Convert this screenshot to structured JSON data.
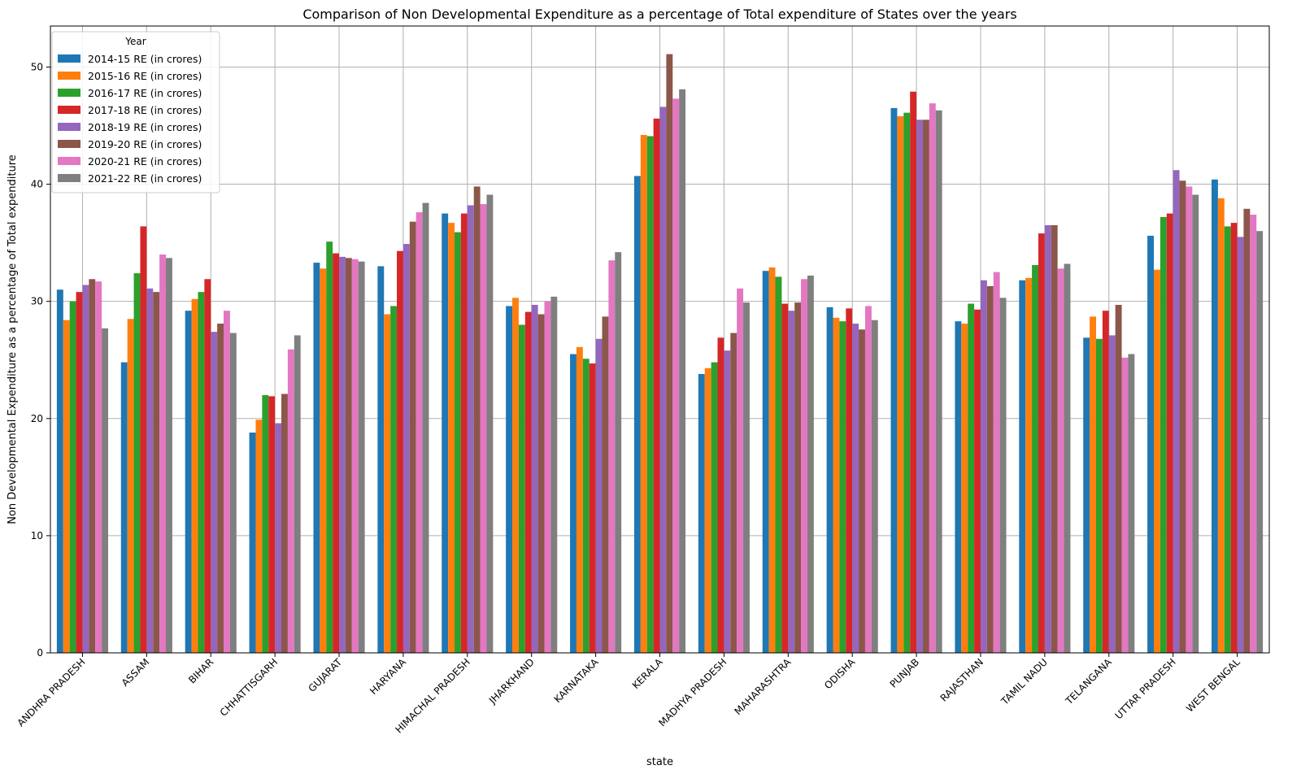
{
  "chart_data": {
    "type": "bar",
    "title": "Comparison of Non Developmental Expenditure as a percentage of Total expenditure of States over the years",
    "xlabel": "state",
    "ylabel": "Non Developmental Expenditure as a percentage of Total expenditure",
    "ylim": [
      0,
      53.5
    ],
    "yticks": [
      0,
      10,
      20,
      30,
      40,
      50
    ],
    "grid": true,
    "legend": {
      "title": "Year",
      "placement": "top-left"
    },
    "categories": [
      "ANDHRA PRADESH",
      "ASSAM",
      "BIHAR",
      "CHHATTISGARH",
      "GUJARAT",
      "HARYANA",
      "HIMACHAL PRADESH",
      "JHARKHAND",
      "KARNATAKA",
      "KERALA",
      "MADHYA PRADESH",
      "MAHARASHTRA",
      "ODISHA",
      "PUNJAB",
      "RAJASTHAN",
      "TAMIL NADU",
      "TELANGANA",
      "UTTAR PRADESH",
      "WEST BENGAL"
    ],
    "series": [
      {
        "name": "2014-15 RE (in crores)",
        "color": "#1f77b4",
        "values": [
          31.0,
          24.8,
          29.2,
          18.8,
          33.3,
          33.0,
          37.5,
          29.6,
          25.5,
          40.7,
          23.8,
          32.6,
          29.5,
          46.5,
          28.3,
          31.8,
          26.9,
          35.6,
          40.4
        ]
      },
      {
        "name": "2015-16 RE (in crores)",
        "color": "#ff7f0e",
        "values": [
          28.4,
          28.5,
          30.2,
          19.9,
          32.8,
          28.9,
          36.7,
          30.3,
          26.1,
          44.2,
          24.3,
          32.9,
          28.6,
          45.8,
          28.1,
          32.0,
          28.7,
          32.7,
          38.8
        ]
      },
      {
        "name": "2016-17 RE (in crores)",
        "color": "#2ca02c",
        "values": [
          30.0,
          32.4,
          30.8,
          22.0,
          35.1,
          29.6,
          35.9,
          28.0,
          25.1,
          44.1,
          24.8,
          32.1,
          28.3,
          46.1,
          29.8,
          33.1,
          26.8,
          37.2,
          36.4
        ]
      },
      {
        "name": "2017-18 RE (in crores)",
        "color": "#d62728",
        "values": [
          30.8,
          36.4,
          31.9,
          21.9,
          34.1,
          34.3,
          37.5,
          29.1,
          24.7,
          45.6,
          26.9,
          29.8,
          29.4,
          47.9,
          29.3,
          35.8,
          29.2,
          37.5,
          36.7
        ]
      },
      {
        "name": "2018-19 RE (in crores)",
        "color": "#9467bd",
        "values": [
          31.4,
          31.1,
          27.4,
          19.6,
          33.8,
          34.9,
          38.2,
          29.7,
          26.8,
          46.6,
          25.8,
          29.2,
          28.1,
          45.5,
          31.8,
          36.5,
          27.1,
          41.2,
          35.5
        ]
      },
      {
        "name": "2019-20 RE (in crores)",
        "color": "#8c564b",
        "values": [
          31.9,
          30.8,
          28.1,
          22.1,
          33.7,
          36.8,
          39.8,
          28.9,
          28.7,
          51.1,
          27.3,
          29.9,
          27.6,
          45.5,
          31.3,
          36.5,
          29.7,
          40.3,
          37.9
        ]
      },
      {
        "name": "2020-21 RE (in crores)",
        "color": "#e377c2",
        "values": [
          31.7,
          34.0,
          29.2,
          25.9,
          33.6,
          37.6,
          38.3,
          30.0,
          33.5,
          47.3,
          31.1,
          31.9,
          29.6,
          46.9,
          32.5,
          32.8,
          25.2,
          39.8,
          37.4
        ]
      },
      {
        "name": "2021-22 RE (in crores)",
        "color": "#7f7f7f",
        "values": [
          27.7,
          33.7,
          27.3,
          27.1,
          33.4,
          38.4,
          39.1,
          30.4,
          34.2,
          48.1,
          29.9,
          32.2,
          28.4,
          46.3,
          30.3,
          33.2,
          25.5,
          39.1,
          36.0
        ]
      }
    ]
  }
}
